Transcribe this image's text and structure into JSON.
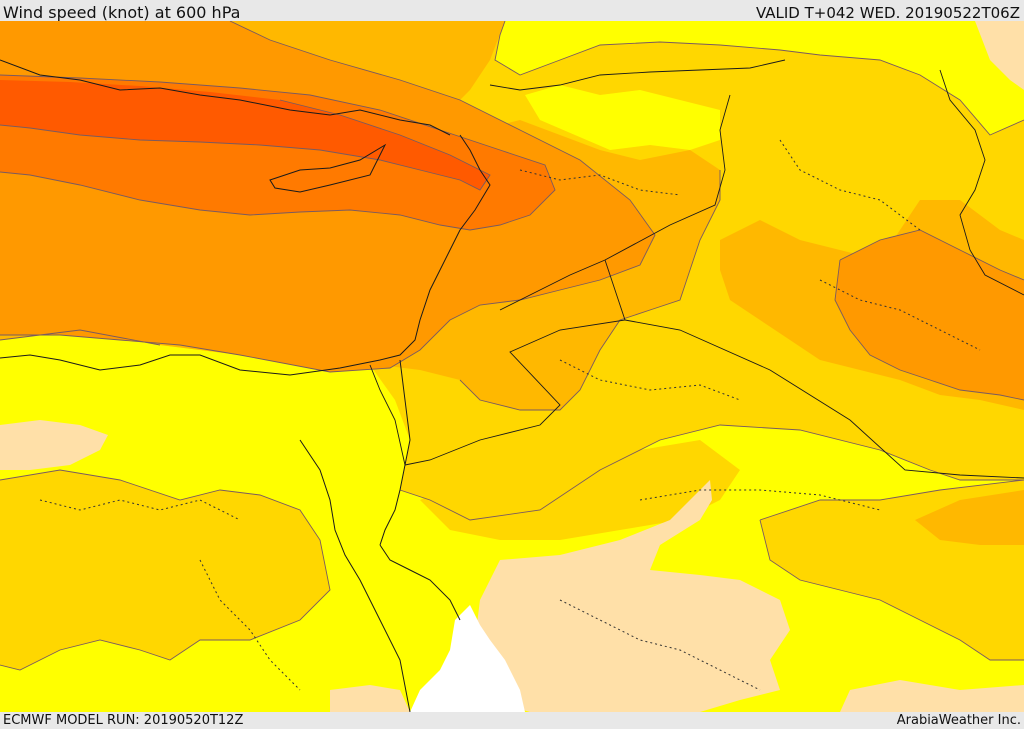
{
  "header": {
    "title": "Wind speed (knot) at 600 hPa",
    "valid": "VALID T+042 WED. 20190522T06Z"
  },
  "footer": {
    "model_run": "ECMWF MODEL RUN: 20190520T12Z",
    "credit": "ArabiaWeather Inc."
  },
  "map": {
    "colors": {
      "band_lt10": "#ffe0a8",
      "band_10_20": "#ffff00",
      "band_20_30": "#ffd700",
      "band_30_40": "#ffb800",
      "band_40_50": "#ff9900",
      "band_50_60": "#ff7a00",
      "band_gt60": "#ff5a00",
      "nodata": "#ffffff"
    }
  }
}
